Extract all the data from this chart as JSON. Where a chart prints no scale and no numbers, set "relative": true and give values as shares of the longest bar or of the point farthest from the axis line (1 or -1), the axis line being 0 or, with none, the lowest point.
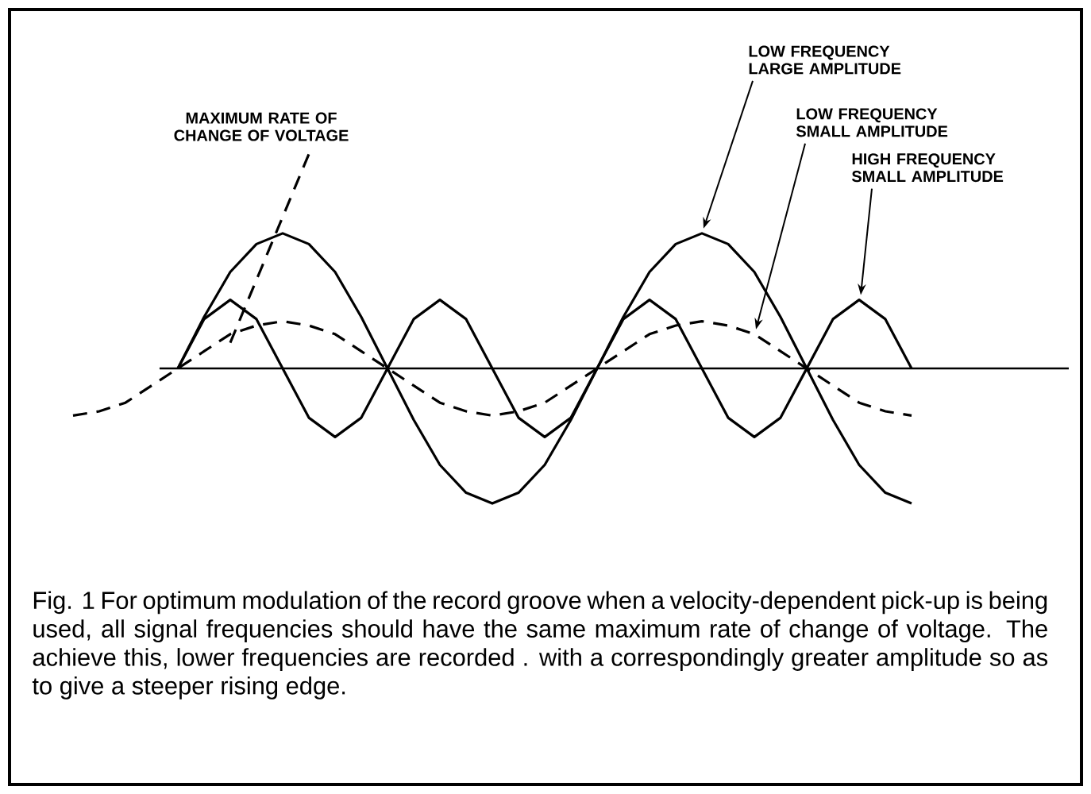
{
  "chart_data": {
    "type": "line",
    "relative": true,
    "legend": false,
    "categories": [
      null,
      null,
      null,
      null,
      null,
      null,
      null,
      null,
      null,
      null,
      null,
      null,
      null,
      null,
      null,
      null,
      null,
      null,
      null,
      null,
      null,
      null,
      null,
      null,
      null,
      null,
      null,
      null,
      null,
      null,
      null,
      null,
      null,
      null,
      null,
      null,
      null,
      null,
      null
    ],
    "series": [
      {
        "name": "MAXIMUM RATE OF CHANGE OF VOLTAGE",
        "color": "#000000",
        "line_style": "dashed",
        "values": [
          null,
          null,
          null,
          null,
          null,
          null,
          0.12,
          null,
          null,
          1.0,
          null,
          null,
          null,
          null,
          null,
          null,
          null,
          null,
          null,
          null,
          null,
          null,
          null,
          null,
          null,
          null,
          null,
          null,
          null,
          null,
          null,
          null,
          null,
          null,
          null,
          null,
          null,
          null,
          null
        ]
      },
      {
        "name": "LOW FREQUENCY LARGE AMPLITUDE",
        "color": "#000000",
        "line_style": "solid",
        "values": [
          null,
          null,
          null,
          null,
          0,
          0.24,
          0.45,
          0.58,
          0.63,
          0.58,
          0.45,
          0.24,
          0,
          -0.24,
          -0.45,
          -0.58,
          -0.63,
          -0.58,
          -0.45,
          -0.24,
          0,
          0.24,
          0.45,
          0.58,
          0.63,
          0.58,
          0.45,
          0.24,
          0,
          -0.24,
          -0.45,
          -0.58,
          -0.63,
          null,
          null,
          null,
          null,
          null,
          null
        ]
      },
      {
        "name": "LOW FREQUENCY SMALL AMPLITUDE",
        "color": "#000000",
        "line_style": "dashed",
        "values": [
          -0.22,
          -0.2,
          -0.16,
          -0.08,
          0,
          0.08,
          0.16,
          0.2,
          0.22,
          0.2,
          0.16,
          0.08,
          0,
          -0.08,
          -0.16,
          -0.2,
          -0.22,
          -0.2,
          -0.16,
          -0.08,
          0,
          0.08,
          0.16,
          0.2,
          0.22,
          0.2,
          0.16,
          0.08,
          0,
          -0.08,
          -0.16,
          -0.2,
          -0.22,
          null,
          null,
          null,
          null,
          null,
          null
        ]
      },
      {
        "name": "HIGH FREQUENCY SMALL AMPLITUDE",
        "color": "#000000",
        "line_style": "solid",
        "values": [
          null,
          null,
          null,
          null,
          0,
          0.23,
          0.32,
          0.23,
          0,
          -0.23,
          -0.32,
          -0.23,
          0,
          0.23,
          0.32,
          0.23,
          0,
          -0.23,
          -0.32,
          -0.23,
          0,
          0.23,
          0.32,
          0.23,
          0,
          -0.23,
          -0.32,
          -0.23,
          0,
          0.23,
          0.32,
          0.23,
          0,
          null,
          null,
          null,
          null,
          null,
          null
        ]
      }
    ],
    "annotations": [
      "Fig. 1 For optimum modulation of the record groove when a velocity-dependent pick-up is being used, all signal frequencies should have the same maximum rate of change of voltage. The achieve this, lower frequencies are recorded . with a correspondingly greater amplitude so as to give a steeper rising edge."
    ]
  }
}
